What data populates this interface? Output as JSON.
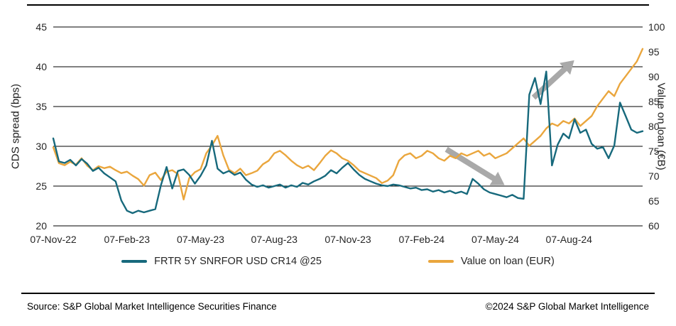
{
  "footer": {
    "source": "Source: S&P Global Market Intelligence Securities Finance",
    "copyright": "©2024 S&P Global Market Intelligence"
  },
  "chart_data": {
    "type": "line",
    "title": "",
    "grid": "horizontal",
    "gridline_color": "#000000",
    "legend_position": "bottom",
    "y_left": {
      "label": "CDS spread (bps)",
      "min": 20,
      "max": 45,
      "ticks": [
        20,
        25,
        30,
        35,
        40,
        45
      ]
    },
    "y_right": {
      "label": "Value on loan (€B)",
      "min": 60,
      "max": 100,
      "ticks": [
        60,
        65,
        70,
        75,
        80,
        85,
        90,
        95,
        100
      ]
    },
    "x_ticks": [
      "07-Nov-22",
      "07-Feb-23",
      "07-May-23",
      "07-Aug-23",
      "07-Nov-23",
      "07-Feb-24",
      "07-May-24",
      "07-Aug-24"
    ],
    "x_tick_positions": [
      0,
      13,
      26,
      39,
      52,
      65,
      78,
      91
    ],
    "x_unit": "weeks since 07-Nov-22",
    "series": [
      {
        "name": "FRTR 5Y SNRFOR USD CR14 @25",
        "axis": "left",
        "color": "#17697c",
        "values": [
          31.0,
          28.1,
          27.9,
          28.3,
          27.6,
          28.4,
          27.8,
          26.9,
          27.3,
          26.6,
          26.1,
          25.6,
          23.2,
          21.9,
          21.6,
          21.9,
          21.7,
          21.9,
          22.1,
          25.1,
          27.4,
          24.7,
          26.9,
          27.1,
          26.4,
          25.3,
          26.3,
          27.6,
          30.7,
          27.2,
          26.6,
          26.9,
          26.4,
          26.7,
          25.8,
          25.2,
          24.9,
          25.1,
          24.8,
          25.0,
          25.2,
          24.8,
          25.1,
          24.9,
          25.4,
          25.2,
          25.6,
          25.9,
          26.3,
          27.0,
          26.6,
          27.3,
          27.9,
          27.1,
          26.4,
          25.9,
          25.6,
          25.3,
          25.1,
          25.0,
          25.2,
          25.1,
          24.9,
          24.7,
          24.8,
          24.5,
          24.6,
          24.3,
          24.5,
          24.2,
          24.4,
          24.1,
          24.3,
          24.0,
          25.9,
          25.3,
          24.6,
          24.2,
          24.0,
          23.8,
          23.6,
          23.9,
          23.5,
          23.4,
          36.5,
          38.6,
          35.3,
          39.4,
          27.6,
          30.2,
          31.6,
          31.0,
          33.4,
          31.7,
          32.1,
          30.3,
          29.7,
          29.9,
          28.5,
          30.1,
          35.5,
          33.8,
          32.1,
          31.7,
          31.9
        ]
      },
      {
        "name": "Value on loan (EUR)",
        "axis": "right",
        "color": "#eaa63d",
        "values": [
          75.8,
          72.6,
          72.2,
          72.9,
          72.3,
          73.6,
          72.1,
          71.2,
          72.0,
          71.6,
          71.9,
          71.2,
          70.6,
          70.9,
          70.1,
          69.4,
          68.1,
          70.2,
          70.7,
          69.2,
          70.9,
          71.2,
          70.4,
          65.3,
          69.6,
          70.8,
          71.4,
          74.6,
          76.2,
          78.1,
          74.2,
          71.3,
          70.6,
          71.5,
          70.2,
          70.6,
          71.1,
          72.4,
          73.1,
          74.6,
          75.1,
          74.2,
          73.1,
          72.2,
          71.6,
          72.1,
          71.2,
          72.6,
          74.1,
          75.2,
          74.6,
          73.6,
          73.1,
          72.2,
          71.1,
          70.6,
          70.1,
          69.6,
          68.6,
          69.1,
          70.2,
          73.1,
          74.2,
          74.6,
          73.6,
          74.1,
          75.1,
          74.6,
          73.6,
          73.1,
          74.1,
          73.6,
          74.6,
          74.1,
          74.6,
          75.1,
          74.1,
          74.6,
          73.6,
          74.1,
          74.6,
          75.6,
          76.6,
          77.6,
          76.1,
          77.1,
          78.1,
          79.6,
          80.6,
          80.1,
          81.1,
          80.6,
          81.6,
          80.1,
          81.1,
          82.1,
          84.1,
          85.6,
          87.1,
          86.1,
          88.6,
          90.1,
          91.6,
          93.1,
          95.6
        ]
      }
    ],
    "annotations": [
      {
        "type": "arrow",
        "direction": "down-right",
        "color": "#a9a9a9",
        "from_frac": [
          0.667,
          0.615
        ],
        "to_frac": [
          0.752,
          0.77
        ]
      },
      {
        "type": "arrow",
        "direction": "up-right",
        "color": "#a9a9a9",
        "from_frac": [
          0.815,
          0.355
        ],
        "to_frac": [
          0.872,
          0.2
        ]
      }
    ]
  }
}
